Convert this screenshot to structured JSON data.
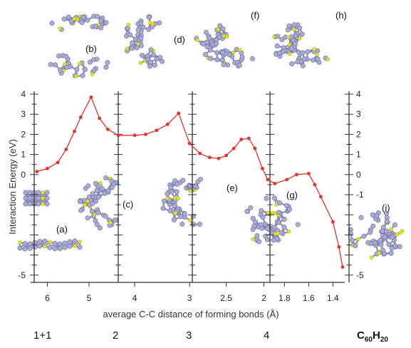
{
  "chart_data": {
    "type": "line",
    "xlabel": "average C-C distance of forming bonds (Å)",
    "ylabel": "Interaction Energy (eV)",
    "series": [
      {
        "color": "#e8302a",
        "points": [
          {
            "x": 6.25,
            "y": 0.15
          },
          {
            "x": 6.0,
            "y": 0.3
          },
          {
            "x": 5.75,
            "y": 0.6
          },
          {
            "x": 5.55,
            "y": 1.25
          },
          {
            "x": 5.35,
            "y": 2.15
          },
          {
            "x": 5.2,
            "y": 2.85
          },
          {
            "x": 4.95,
            "y": 3.85
          },
          {
            "x": 4.75,
            "y": 2.8
          },
          {
            "x": 4.55,
            "y": 2.25
          },
          {
            "x": 4.3,
            "y": 1.95
          },
          {
            "x": 4.0,
            "y": 1.95
          },
          {
            "x": 3.8,
            "y": 2.0
          },
          {
            "x": 3.6,
            "y": 2.2
          },
          {
            "x": 3.4,
            "y": 2.5
          },
          {
            "x": 3.2,
            "y": 3.05
          },
          {
            "x": 3.0,
            "y": 1.55
          },
          {
            "x": 2.85,
            "y": 1.05
          },
          {
            "x": 2.72,
            "y": 0.85
          },
          {
            "x": 2.6,
            "y": 0.8
          },
          {
            "x": 2.5,
            "y": 0.95
          },
          {
            "x": 2.4,
            "y": 1.3
          },
          {
            "x": 2.3,
            "y": 1.75
          },
          {
            "x": 2.2,
            "y": 1.8
          },
          {
            "x": 2.12,
            "y": 1.3
          },
          {
            "x": 2.02,
            "y": 0.3
          },
          {
            "x": 1.95,
            "y": -0.25
          },
          {
            "x": 1.88,
            "y": -0.45
          },
          {
            "x": 1.78,
            "y": -0.25
          },
          {
            "x": 1.7,
            "y": 0.0
          },
          {
            "x": 1.6,
            "y": 0.05
          },
          {
            "x": 1.55,
            "y": -0.5
          },
          {
            "x": 1.5,
            "y": -1.1
          },
          {
            "x": 1.4,
            "y": -2.35
          },
          {
            "x": 1.35,
            "y": -3.6
          },
          {
            "x": 1.3,
            "y": -4.6
          }
        ]
      }
    ],
    "segments": [
      {
        "range": [
          6.4,
          4.3
        ],
        "ticks": [
          6,
          5
        ]
      },
      {
        "range": [
          4.3,
          2.95
        ],
        "ticks": [
          4,
          3
        ]
      },
      {
        "range": [
          2.95,
          1.92
        ],
        "ticks": [
          2.5,
          2
        ]
      },
      {
        "range": [
          1.92,
          1.32
        ],
        "ticks": [
          1.8,
          1.6,
          1.4
        ]
      }
    ],
    "ylim": [
      -5.3,
      4.2
    ],
    "yticks_left": [
      "4",
      "3",
      "2",
      "1",
      "0",
      "-5"
    ],
    "yticks_right": [
      "4",
      "3",
      "2",
      "1",
      "0",
      "-1",
      "-5"
    ],
    "xtick_labels": [
      "6",
      "5",
      "4",
      "3",
      "2.5",
      "2",
      "1.8",
      "1.6",
      "1.4"
    ],
    "panel_labels": [
      "(a)",
      "(b)",
      "(c)",
      "(d)",
      "(e)",
      "(f)",
      "(g)",
      "(h)",
      "(i)"
    ],
    "stage_labels": [
      "1+1",
      "2",
      "3",
      "4"
    ],
    "final_formula": {
      "base": "C",
      "sub1": "60",
      "mid": "H",
      "sub2": "20"
    },
    "colors": {
      "curve": "#e8302a",
      "carbon": "#a9abd4",
      "carbon_edge": "#6d6f9c",
      "hydrogen": "#e5e51a",
      "axis": "#333333"
    }
  }
}
